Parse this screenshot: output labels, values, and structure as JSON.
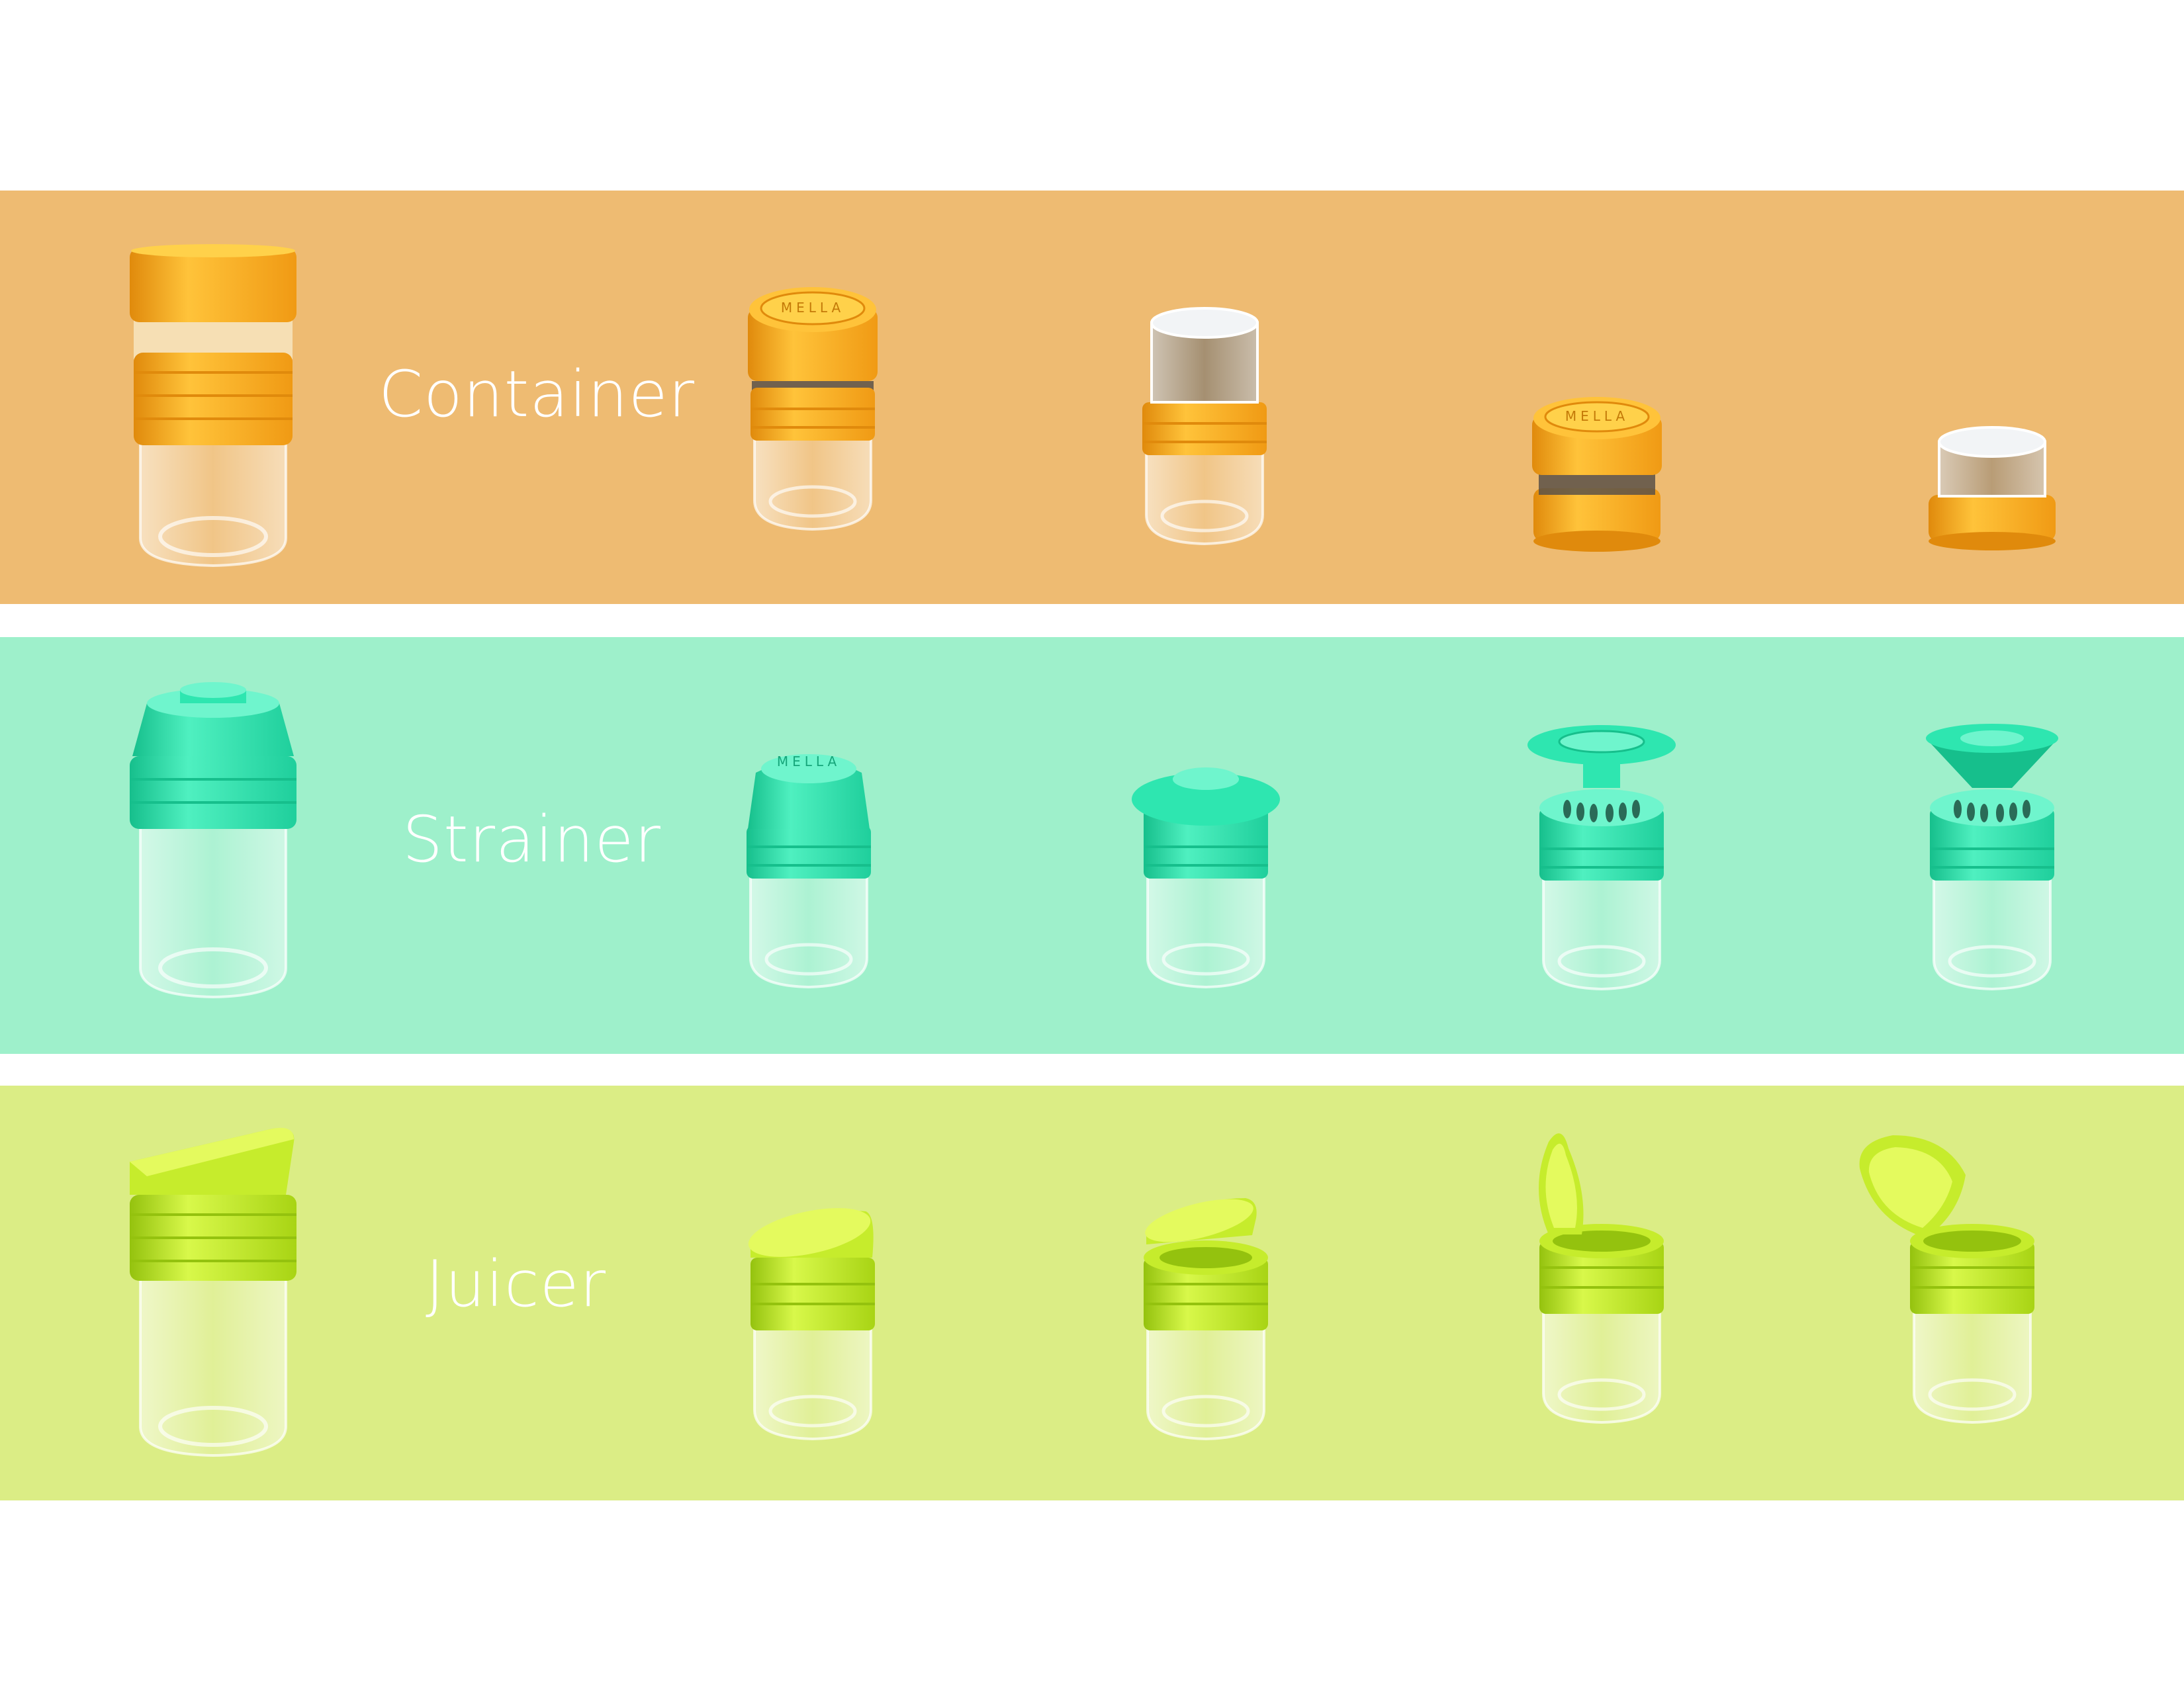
{
  "colors": {
    "page_background": "#ffffff",
    "text": "#ffffff",
    "glass": "#e9eef0"
  },
  "sections": [
    {
      "label": "Container",
      "band_color": "#eebb72",
      "cap_color": "#fbae26",
      "cap_light": "#ffd14a",
      "cap_dark": "#e08a0c",
      "items": [
        {
          "variant": "assembled"
        },
        {
          "variant": "collar-with-lid",
          "brand_text": "MELLA"
        },
        {
          "variant": "collar-with-glass-insert"
        },
        {
          "variant": "short-lid",
          "brand_text": "MELLA"
        },
        {
          "variant": "short-glass-insert"
        }
      ]
    },
    {
      "label": "Strainer",
      "band_color": "#9ef0cb",
      "cap_color": "#2ee6b0",
      "cap_light": "#6ff5cd",
      "cap_dark": "#16bf8c",
      "items": [
        {
          "variant": "assembled"
        },
        {
          "variant": "dome-cap",
          "brand_text": "MELLA"
        },
        {
          "variant": "disc-cap"
        },
        {
          "variant": "raised-disc-vents"
        },
        {
          "variant": "raised-funnel-vents"
        }
      ]
    },
    {
      "label": "Juicer",
      "band_color": "#dbed85",
      "cap_color": "#c6ec2c",
      "cap_light": "#e4fa5e",
      "cap_dark": "#94c20e",
      "items": [
        {
          "variant": "assembled"
        },
        {
          "variant": "slanted-lid-closed"
        },
        {
          "variant": "slanted-lid-ajar"
        },
        {
          "variant": "lid-open"
        },
        {
          "variant": "lid-open-wide"
        }
      ]
    }
  ]
}
